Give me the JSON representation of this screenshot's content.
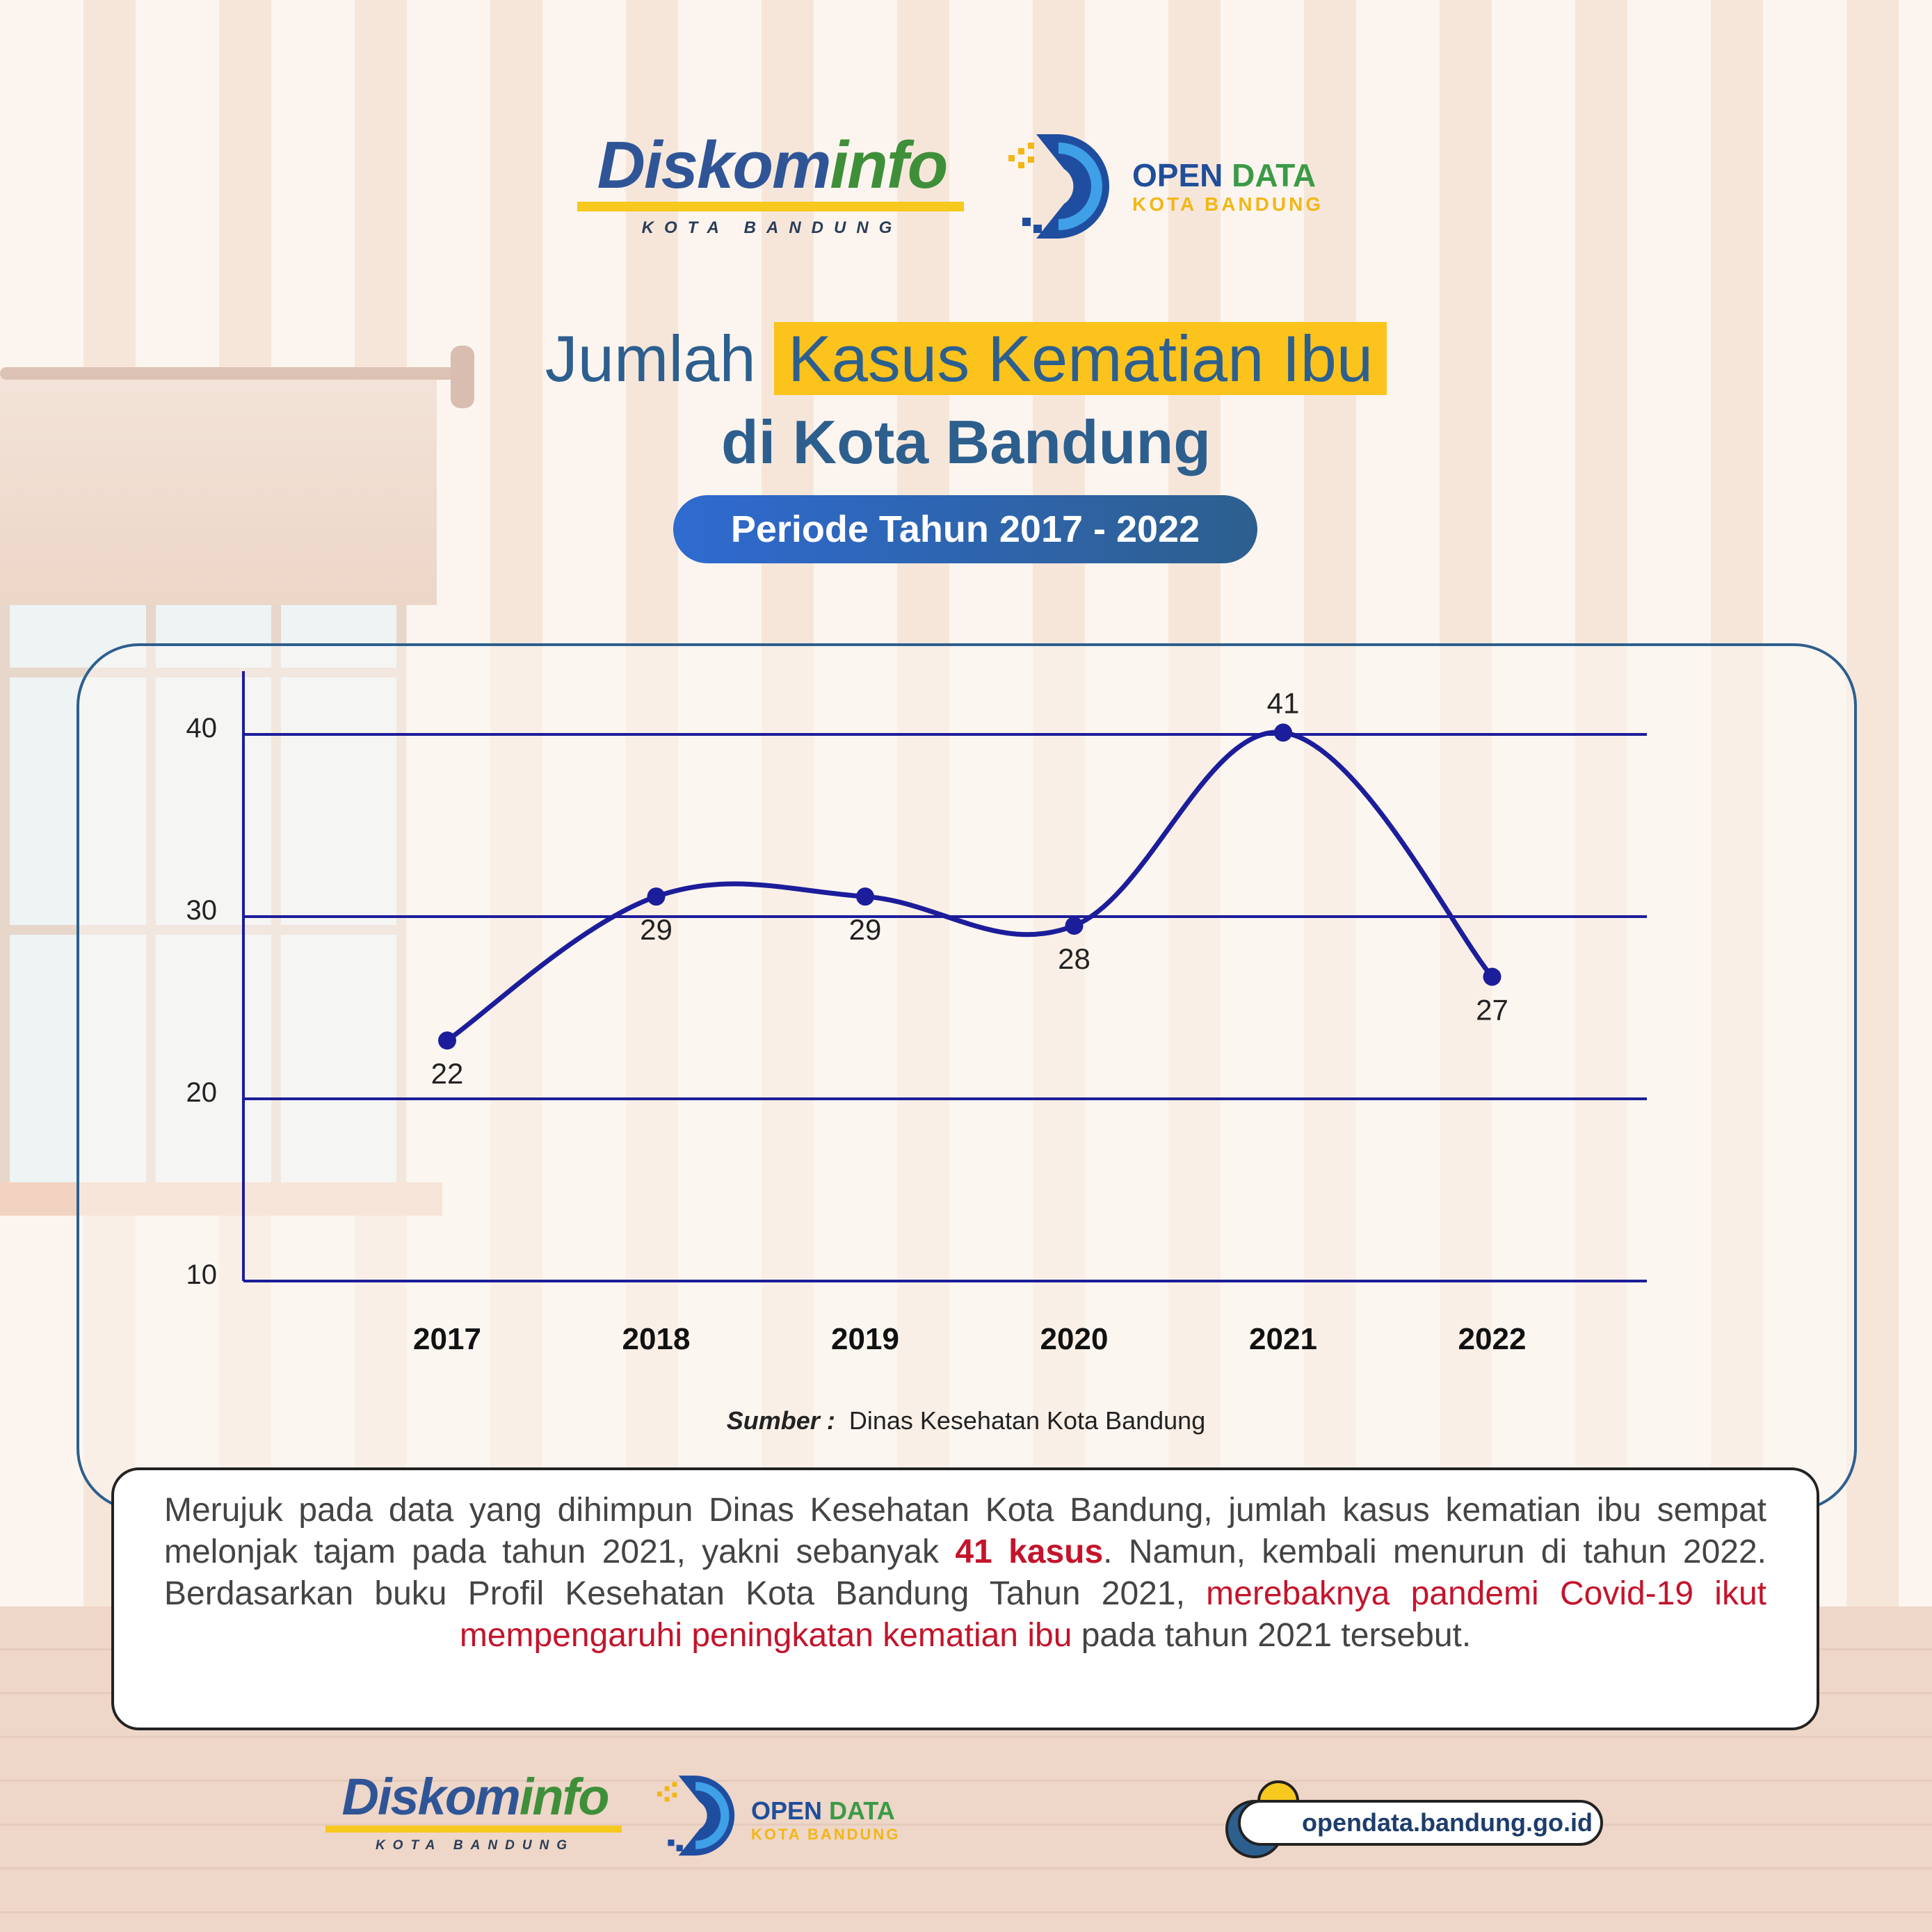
{
  "header": {
    "diskominfo_dis": "Diskom",
    "diskominfo_info": "info",
    "diskominfo_sub": "KOTA BANDUNG",
    "opendata_open": "OPEN",
    "opendata_data": "DATA",
    "opendata_sub": "KOTA BANDUNG"
  },
  "title": {
    "part1": "Jumlah",
    "highlight": "Kasus Kematian Ibu",
    "line2": "di Kota Bandung",
    "period": "Periode Tahun 2017 - 2022"
  },
  "chart_data": {
    "type": "line",
    "categories": [
      "2017",
      "2018",
      "2019",
      "2020",
      "2021",
      "2022"
    ],
    "values": [
      22,
      29,
      29,
      28,
      41,
      27
    ],
    "marker_positions": [
      23.2,
      31.1,
      31.1,
      29.5,
      40.1,
      26.7
    ],
    "yticks": [
      "40",
      "30",
      "20",
      "10"
    ],
    "ylim": [
      10,
      43
    ],
    "grid": true,
    "colors": {
      "line": "#1c1d9a",
      "grid": "#1c1d9a",
      "axis": "#1c1d9a"
    }
  },
  "source": {
    "label": "Sumber :",
    "text": "Dinas Kesehatan Kota Bandung"
  },
  "description": {
    "p1": "Merujuk pada data yang dihimpun Dinas Kesehatan Kota Bandung, jumlah kasus kematian ibu sempat melonjak tajam pada tahun 2021, yakni sebanyak ",
    "highlight_bold": "41 kasus",
    "p2": ". Namun, kembali menurun di tahun 2022. Berdasarkan buku Profil Kesehatan Kota Bandung Tahun 2021, ",
    "highlight_red": "merebaknya pandemi Covid-19 ikut mempengaruhi peningkatan kematian ibu",
    "p3": " pada tahun 2021 tersebut."
  },
  "footer": {
    "url": "opendata.bandung.go.id"
  }
}
